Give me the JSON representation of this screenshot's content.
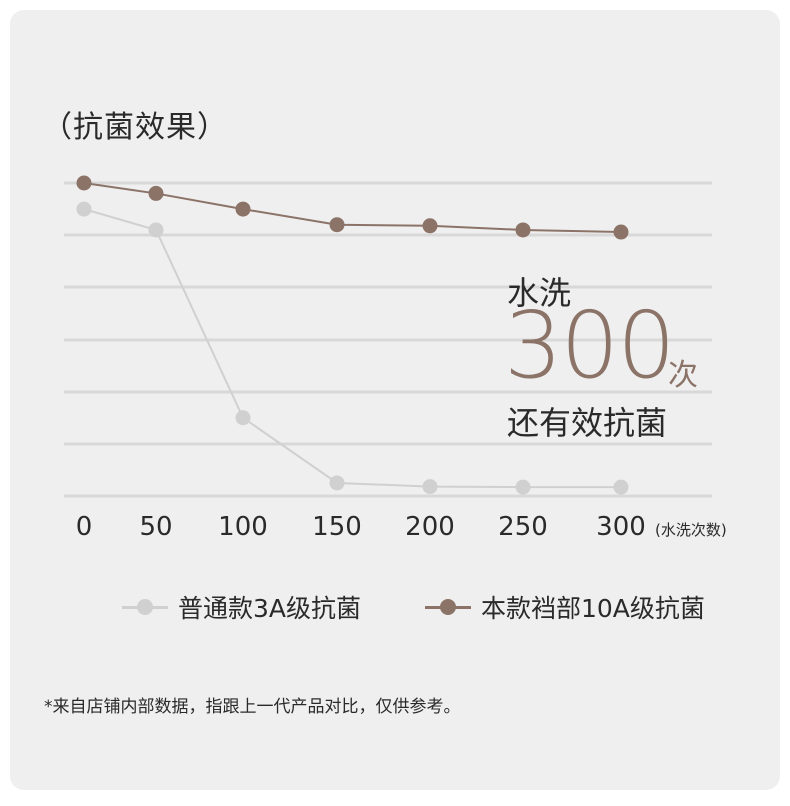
{
  "chart_data": {
    "type": "line",
    "title": "（抗菌效果）",
    "categories": [
      "0",
      "50",
      "100",
      "150",
      "200",
      "250",
      "300"
    ],
    "x_unit": "(水洗次数)",
    "grid": true,
    "legend_position": "bottom",
    "series": [
      {
        "name": "普通款3A级抗菌",
        "values": [
          5.5,
          5.1,
          1.5,
          0.25,
          0.18,
          0.17,
          0.17
        ],
        "color": "#d0d0d0"
      },
      {
        "name": "本款裆部10A级抗菌",
        "values": [
          6.0,
          5.8,
          5.5,
          5.2,
          5.18,
          5.1,
          5.06
        ],
        "color": "#8c7368"
      }
    ],
    "annotation": {
      "line1": "水洗",
      "number": "300",
      "unit": "次",
      "line2": "还有效抗菌"
    }
  },
  "footnote": "*来自店铺内部数据，指跟上一代产品对比，仅供参考。"
}
